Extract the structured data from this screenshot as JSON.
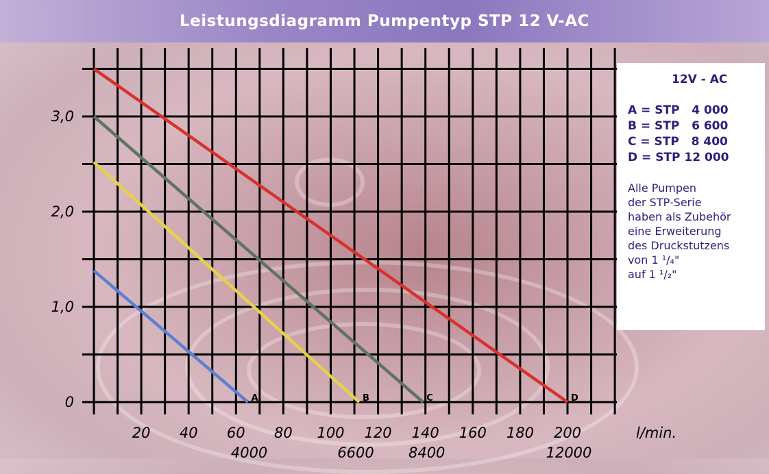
{
  "title": "Leistungsdiagramm Pumpentyp STP 12 V-AC",
  "legend": {
    "heading": "12V - AC",
    "entries": [
      {
        "key": "A",
        "text": "A = STP   4 000",
        "color": "#5b7fd3"
      },
      {
        "key": "B",
        "text": "B = STP   6 600",
        "color": "#e6d24a"
      },
      {
        "key": "C",
        "text": "C = STP   8 400",
        "color": "#5e7361"
      },
      {
        "key": "D",
        "text": "D = STP 12 000",
        "color": "#d7322e"
      }
    ],
    "note": "Alle Pumpen\nder STP-Serie\nhaben als Zubehör\neine Erweiterung\ndes Druckstutzens\nvon 1 ¹/₄\"\nauf 1 ¹/₂\""
  },
  "chart_data": {
    "type": "line",
    "title": "Leistungsdiagramm Pumpentyp STP 12 V-AC",
    "xlabel": "l/min.",
    "ylabel": "",
    "xlim": [
      0,
      220
    ],
    "ylim": [
      0,
      3.5
    ],
    "x_ticks": [
      "20",
      "40",
      "60",
      "80",
      "100",
      "120",
      "140",
      "160",
      "180",
      "200"
    ],
    "y_ticks": [
      {
        "value": 0,
        "label": "0"
      },
      {
        "value": 1,
        "label": "1,0"
      },
      {
        "value": 2,
        "label": "2,0"
      },
      {
        "value": 3,
        "label": "3,0"
      }
    ],
    "x_sub_labels": [
      {
        "x": 65,
        "label": "4000"
      },
      {
        "x": 110,
        "label": "6600"
      },
      {
        "x": 140,
        "label": "8400"
      },
      {
        "x": 200,
        "label": "12000"
      }
    ],
    "grid": true,
    "legend_position": "right",
    "series": [
      {
        "name": "A",
        "color": "#5b7fd3",
        "x": [
          0,
          65
        ],
        "y": [
          1.38,
          0
        ]
      },
      {
        "name": "B",
        "color": "#e6d24a",
        "x": [
          0,
          112
        ],
        "y": [
          2.52,
          0
        ]
      },
      {
        "name": "C",
        "color": "#5e7361",
        "x": [
          0,
          139
        ],
        "y": [
          3.0,
          0
        ]
      },
      {
        "name": "D",
        "color": "#d7322e",
        "x": [
          0,
          200
        ],
        "y": [
          3.5,
          0
        ]
      }
    ]
  }
}
